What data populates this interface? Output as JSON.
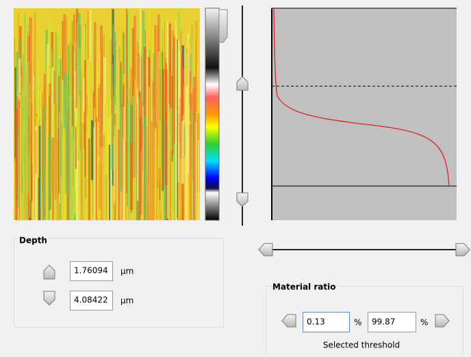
{
  "depth": {
    "title": "Depth",
    "upper": {
      "value": "1.76094",
      "unit": "µm"
    },
    "lower": {
      "value": "4.08422",
      "unit": "µm"
    }
  },
  "material_ratio": {
    "title": "Material ratio",
    "low": {
      "value": "0.13",
      "unit": "%"
    },
    "high": {
      "value": "99.87",
      "unit": "%"
    },
    "caption": "Selected threshold"
  }
}
